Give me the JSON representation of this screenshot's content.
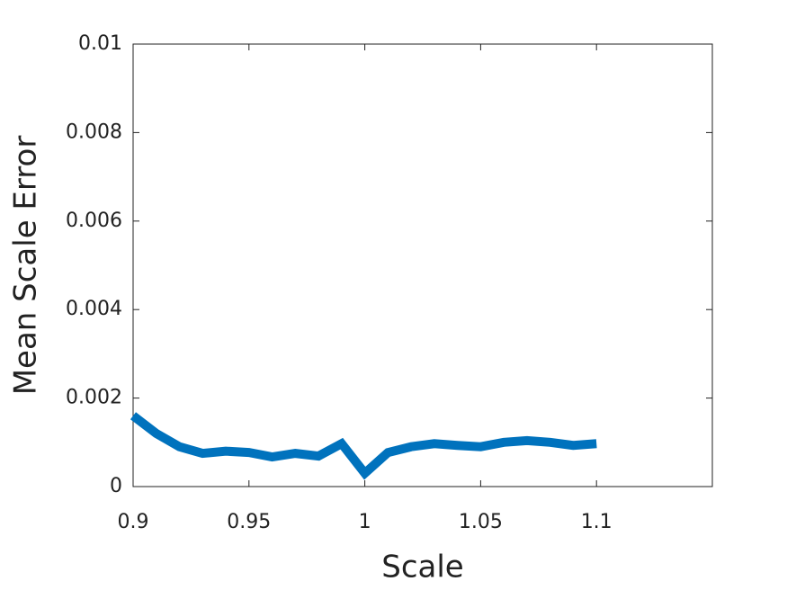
{
  "chart_data": {
    "type": "line",
    "xlabel": "Scale",
    "ylabel": "Mean Scale Error",
    "x": [
      0.9,
      0.91,
      0.92,
      0.93,
      0.94,
      0.95,
      0.96,
      0.97,
      0.98,
      0.99,
      1.0,
      1.01,
      1.02,
      1.03,
      1.04,
      1.05,
      1.06,
      1.07,
      1.08,
      1.09,
      1.1
    ],
    "series": [
      {
        "color": "#0072bd",
        "values": [
          0.0016,
          0.0012,
          0.0009,
          0.00075,
          0.0008,
          0.00077,
          0.00067,
          0.00075,
          0.00069,
          0.00097,
          0.0003,
          0.00077,
          0.0009,
          0.00097,
          0.00093,
          0.0009,
          0.001,
          0.00104,
          0.001,
          0.00093,
          0.00097
        ]
      }
    ],
    "xlim": [
      0.9,
      1.15
    ],
    "xticks": [
      0.9,
      0.95,
      1,
      1.05,
      1.1
    ],
    "ylim": [
      0,
      0.01
    ],
    "yticks": [
      0,
      0.002,
      0.004,
      0.006,
      0.008,
      0.01
    ],
    "grid": false
  }
}
